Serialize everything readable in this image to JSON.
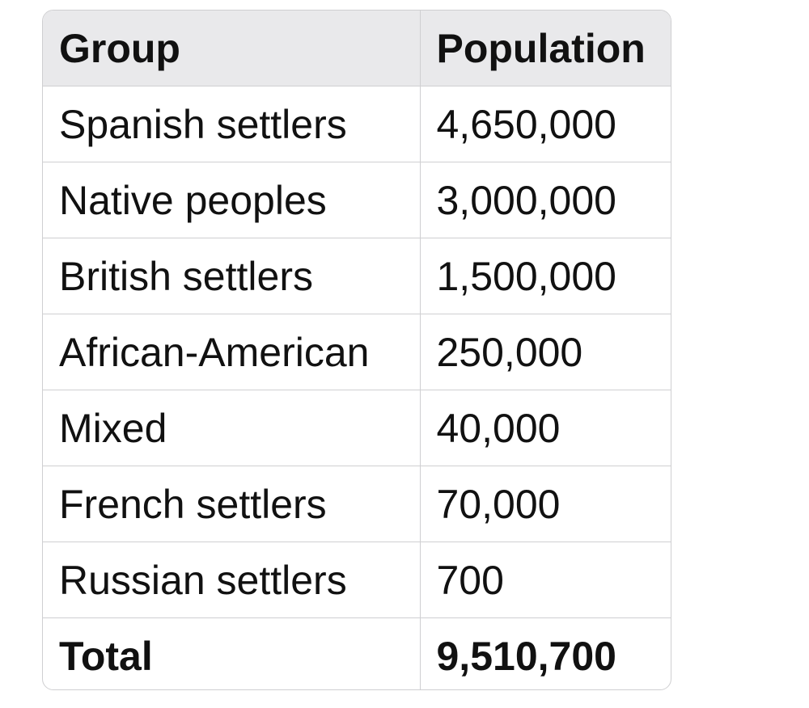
{
  "table": {
    "headers": [
      "Group",
      "Population"
    ],
    "rows": [
      [
        "Spanish settlers",
        "4,650,000"
      ],
      [
        "Native peoples",
        "3,000,000"
      ],
      [
        "British settlers",
        "1,500,000"
      ],
      [
        "African-American",
        "250,000"
      ],
      [
        "Mixed",
        "40,000"
      ],
      [
        "French settlers",
        "70,000"
      ],
      [
        "Russian settlers",
        "700"
      ]
    ],
    "total": [
      "Total",
      "9,510,700"
    ]
  }
}
